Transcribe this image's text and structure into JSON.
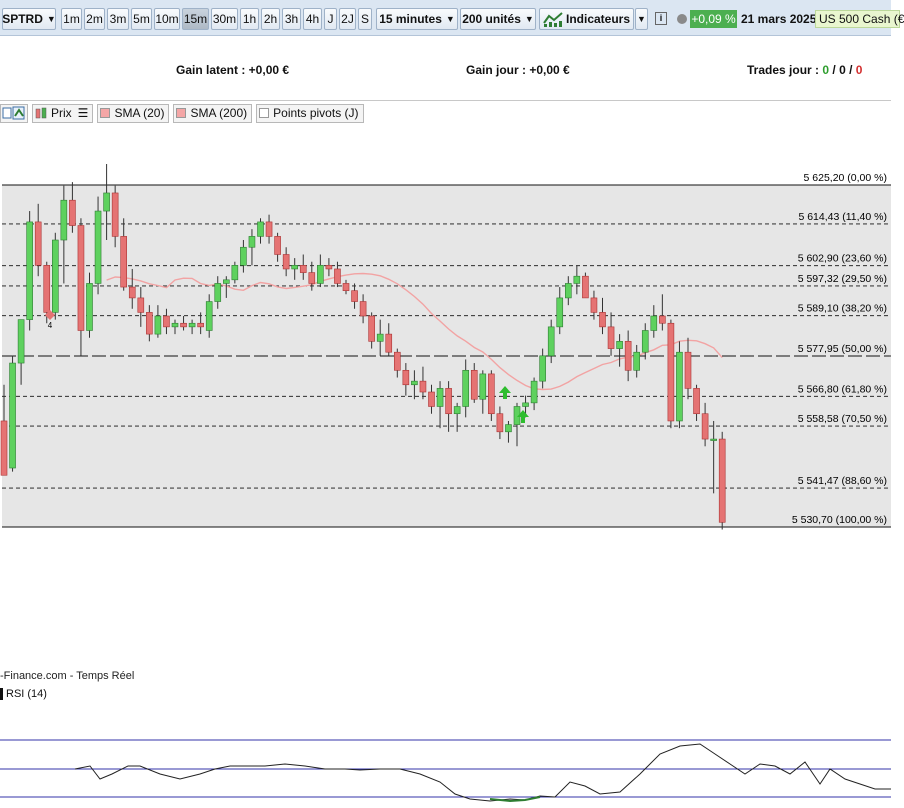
{
  "toolbar": {
    "symbol": "SPTRD",
    "timeframes": [
      "1m",
      "2m",
      "3m",
      "5m",
      "10m",
      "15m",
      "30m",
      "1h",
      "2h",
      "3h",
      "4h",
      "J",
      "2J",
      "S"
    ],
    "active_timeframe": "15m",
    "interval_select": "15 minutes",
    "units_select": "200 unités",
    "indicators_label": "Indicateurs",
    "info_icon": "i",
    "change_pct": "+0,09 %",
    "date": "21 mars 2025",
    "cash_label": "US 500 Cash (€",
    "colors": {
      "up": "#4caf50",
      "toolbar_bg": "#dbe6f2"
    }
  },
  "stats": {
    "gain_latent": "Gain latent : +0,00 €",
    "gain_jour": "Gain jour : +0,00 €",
    "trades_label": "Trades jour : ",
    "trades_a": "0",
    "trades_sep1": " / ",
    "trades_b": "0",
    "trades_sep2": " / ",
    "trades_c": "0"
  },
  "legend": {
    "items": [
      {
        "label": "Prix",
        "icon": "candles-icon"
      },
      {
        "label": "SMA (20)",
        "color": "#f4a6a6"
      },
      {
        "label": "SMA (200)",
        "color": "#f4a6a6"
      },
      {
        "label": "Points pivots (J)",
        "color": "#ffffff"
      }
    ]
  },
  "chart_data": {
    "type": "candlestick",
    "fib_levels": [
      {
        "price": 5625.2,
        "label": "5 625,20 (0,00 %)",
        "style": "solid"
      },
      {
        "price": 5614.43,
        "label": "5 614,43 (11,40 %)",
        "style": "dashed"
      },
      {
        "price": 5602.9,
        "label": "5 602,90 (23,60 %)",
        "style": "dashed"
      },
      {
        "price": 5597.32,
        "label": "5 597,32 (29,50 %)",
        "style": "dashed"
      },
      {
        "price": 5589.1,
        "label": "5 589,10 (38,20 %)",
        "style": "dashed"
      },
      {
        "price": 5577.95,
        "label": "5 577,95 (50,00 %)",
        "style": "longdash"
      },
      {
        "price": 5566.8,
        "label": "5 566,80 (61,80 %)",
        "style": "dashed"
      },
      {
        "price": 5558.58,
        "label": "5 558,58 (70,50 %)",
        "style": "dashed"
      },
      {
        "price": 5541.47,
        "label": "5 541,47 (88,60 %)",
        "style": "dashed"
      },
      {
        "price": 5530.7,
        "label": "5 530,70 (100,00 %)",
        "style": "solid"
      }
    ],
    "candles": [
      [
        5560,
        5570,
        5545,
        5545
      ],
      [
        5547,
        5578,
        5546,
        5576
      ],
      [
        5576,
        5588,
        5570,
        5588
      ],
      [
        5588,
        5618,
        5585,
        5615
      ],
      [
        5615,
        5620,
        5600,
        5603
      ],
      [
        5603,
        5604,
        5587,
        5590
      ],
      [
        5590,
        5612,
        5588,
        5610
      ],
      [
        5610,
        5625,
        5598,
        5621
      ],
      [
        5621,
        5626,
        5612,
        5614
      ],
      [
        5614,
        5616,
        5578,
        5585
      ],
      [
        5585,
        5601,
        5583,
        5598
      ],
      [
        5598,
        5622,
        5595,
        5618
      ],
      [
        5618,
        5631,
        5610,
        5623
      ],
      [
        5623,
        5625,
        5608,
        5611
      ],
      [
        5611,
        5616,
        5596,
        5597
      ],
      [
        5597,
        5602,
        5591,
        5594
      ],
      [
        5594,
        5597,
        5586,
        5590
      ],
      [
        5590,
        5592,
        5582,
        5584
      ],
      [
        5584,
        5592,
        5583,
        5589
      ],
      [
        5589,
        5591,
        5584,
        5586
      ],
      [
        5586,
        5588,
        5584,
        5587
      ],
      [
        5587,
        5589,
        5585,
        5586
      ],
      [
        5586,
        5588,
        5584,
        5587
      ],
      [
        5587,
        5590,
        5584,
        5586
      ],
      [
        5585,
        5595,
        5583,
        5593
      ],
      [
        5593,
        5600,
        5591,
        5598
      ],
      [
        5598,
        5600,
        5594,
        5599
      ],
      [
        5599,
        5604,
        5598,
        5603
      ],
      [
        5603,
        5610,
        5601,
        5608
      ],
      [
        5608,
        5613,
        5603,
        5611
      ],
      [
        5611,
        5616,
        5609,
        5615
      ],
      [
        5615,
        5617,
        5609,
        5611
      ],
      [
        5611,
        5612,
        5604,
        5606
      ],
      [
        5606,
        5608,
        5600,
        5602
      ],
      [
        5602,
        5605,
        5599,
        5603
      ],
      [
        5603,
        5606,
        5599,
        5601
      ],
      [
        5601,
        5604,
        5596,
        5598
      ],
      [
        5598,
        5606,
        5597,
        5603
      ],
      [
        5603,
        5605,
        5600,
        5602
      ],
      [
        5602,
        5604,
        5597,
        5598
      ],
      [
        5598,
        5599,
        5595,
        5596
      ],
      [
        5596,
        5598,
        5591,
        5593
      ],
      [
        5593,
        5595,
        5587,
        5589
      ],
      [
        5589,
        5590,
        5580,
        5582
      ],
      [
        5582,
        5588,
        5578,
        5584
      ],
      [
        5584,
        5587,
        5578,
        5579
      ],
      [
        5579,
        5580,
        5572,
        5574
      ],
      [
        5574,
        5576,
        5567,
        5570
      ],
      [
        5570,
        5574,
        5566,
        5571
      ],
      [
        5571,
        5575,
        5566,
        5568
      ],
      [
        5568,
        5570,
        5562,
        5564
      ],
      [
        5564,
        5571,
        5558,
        5569
      ],
      [
        5569,
        5571,
        5557,
        5562
      ],
      [
        5562,
        5565,
        5557,
        5564
      ],
      [
        5564,
        5577,
        5561,
        5574
      ],
      [
        5574,
        5576,
        5565,
        5566
      ],
      [
        5566,
        5574,
        5562,
        5573
      ],
      [
        5573,
        5574,
        5560,
        5562
      ],
      [
        5562,
        5564,
        5555,
        5557
      ],
      [
        5557,
        5560,
        5554,
        5559
      ],
      [
        5559,
        5565,
        5553,
        5564
      ],
      [
        5564,
        5567,
        5561,
        5565
      ],
      [
        5565,
        5572,
        5563,
        5571
      ],
      [
        5571,
        5580,
        5569,
        5578
      ],
      [
        5578,
        5588,
        5576,
        5586
      ],
      [
        5586,
        5597,
        5584,
        5594
      ],
      [
        5594,
        5600,
        5592,
        5598
      ],
      [
        5598,
        5603,
        5595,
        5600
      ],
      [
        5600,
        5601,
        5594,
        5594
      ],
      [
        5594,
        5596,
        5588,
        5590
      ],
      [
        5590,
        5594,
        5584,
        5586
      ],
      [
        5586,
        5590,
        5578,
        5580
      ],
      [
        5580,
        5584,
        5575,
        5582
      ],
      [
        5582,
        5585,
        5571,
        5574
      ],
      [
        5574,
        5581,
        5572,
        5579
      ],
      [
        5579,
        5587,
        5577,
        5585
      ],
      [
        5585,
        5592,
        5583,
        5589
      ],
      [
        5589,
        5595,
        5585,
        5587
      ],
      [
        5587,
        5588,
        5558,
        5560
      ],
      [
        5560,
        5582,
        5558,
        5579
      ],
      [
        5579,
        5583,
        5566,
        5569
      ],
      [
        5569,
        5570,
        5560,
        5562
      ],
      [
        5562,
        5565,
        5553,
        5555
      ],
      [
        5555,
        5560,
        5540,
        5555
      ],
      [
        5555,
        5557,
        5530,
        5532
      ]
    ]
  },
  "annotations": {
    "candle_count_label": "4"
  },
  "watermark": "-Finance.com - Temps Réel",
  "rsi": {
    "label": "RSI (14)"
  }
}
